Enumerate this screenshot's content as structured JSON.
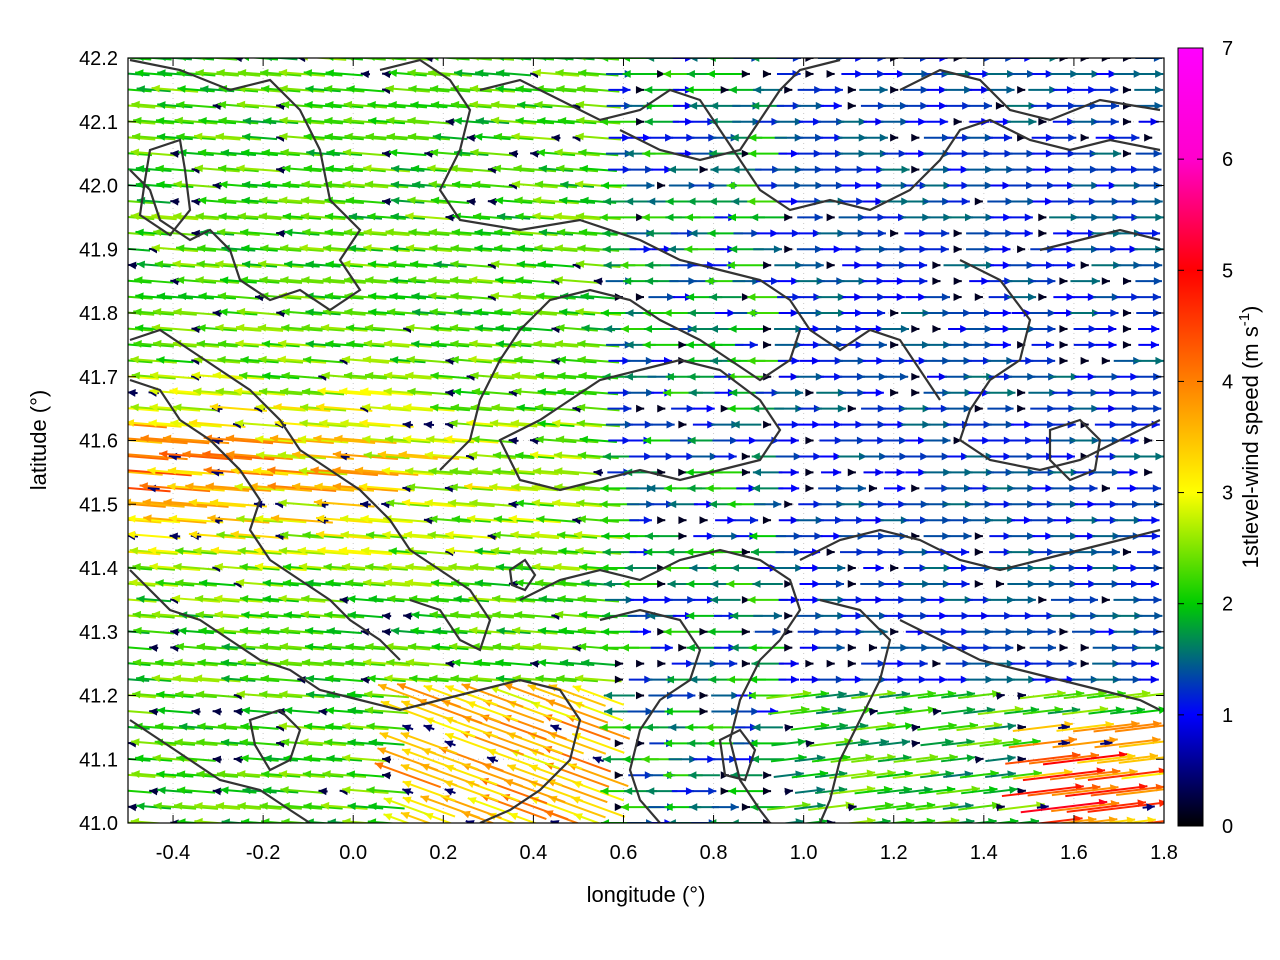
{
  "chart_data": {
    "type": "vector-field",
    "xlabel": "longitude (°)",
    "ylabel": "latitude (°)",
    "xlim": [
      -0.5,
      1.8
    ],
    "ylim": [
      41.0,
      42.2
    ],
    "x_ticks": [
      "-0.4",
      "-0.2",
      "0.0",
      "0.2",
      "0.4",
      "0.6",
      "0.8",
      "1.0",
      "1.2",
      "1.4",
      "1.6",
      "1.8"
    ],
    "y_ticks": [
      "41.0",
      "41.1",
      "41.2",
      "41.3",
      "41.4",
      "41.5",
      "41.6",
      "41.7",
      "41.8",
      "41.9",
      "42.0",
      "42.1",
      "42.2"
    ],
    "colorbar": {
      "label_main": "1stlevel-wind speed (m s",
      "label_sup": "-1",
      "label_end": ")",
      "range": [
        0,
        7
      ],
      "ticks": [
        "0",
        "1",
        "2",
        "3",
        "4",
        "5",
        "6",
        "7"
      ],
      "palette": [
        "#000000",
        "#0000ff",
        "#00cc00",
        "#ffff00",
        "#ff8000",
        "#ff0000",
        "#ff00ff"
      ]
    },
    "grid": true,
    "contour_color": "#333333",
    "field_summary": {
      "west_of_0.5E": "winds mostly westward (arrows pointing left), 2–5 m s-1, strongest near 41.45–41.65N",
      "east_of_0.9E": "winds mostly eastward (arrows pointing right), 1–2 m s-1, stronger 4–5 m s-1 near 41.0–41.15N at 1.6–1.8E"
    }
  }
}
